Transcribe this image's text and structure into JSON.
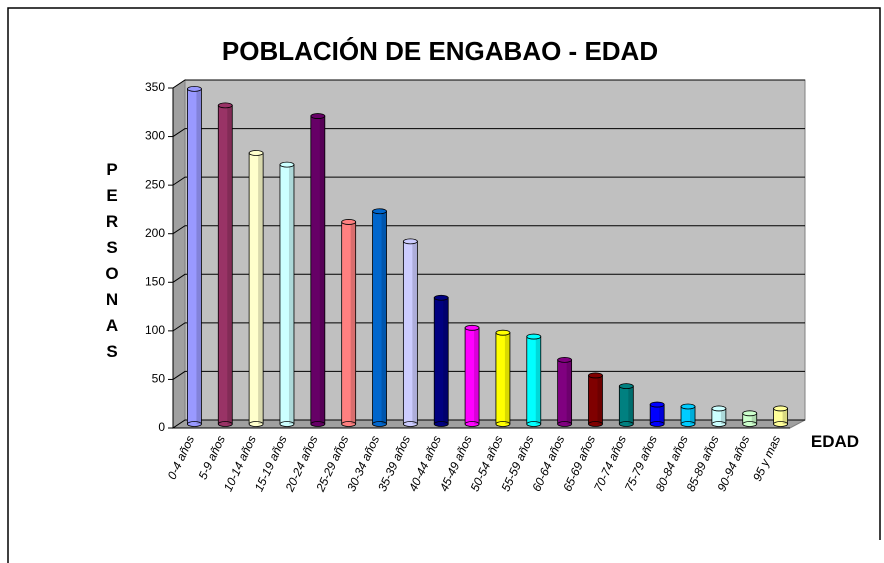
{
  "chart_data": {
    "type": "bar3d",
    "title": "POBLACIÓN DE ENGABAO - EDAD",
    "x_label": "EDAD",
    "y_label": "PERSONAS",
    "categories": [
      "0-4 años",
      "5-9 años",
      "10-14 años",
      "15-19 años",
      "20-24 años",
      "25-29 años",
      "30-34 años",
      "35-39 años",
      "40-44 años",
      "45-49 años",
      "50-54 años",
      "55-59 años",
      "60-64 años",
      "65-69 años",
      "70-74 años",
      "75-79 años",
      "80-84 años",
      "85-89 años",
      "90-94 años",
      "95 y mas"
    ],
    "values": [
      345,
      328,
      279,
      267,
      317,
      208,
      219,
      188,
      130,
      99,
      94,
      90,
      66,
      50,
      39,
      20,
      18,
      16,
      11,
      16
    ],
    "colors": [
      "#9999ff",
      "#993366",
      "#ffffcc",
      "#ccffff",
      "#660066",
      "#ff8080",
      "#0066cc",
      "#ccccff",
      "#000080",
      "#ff00ff",
      "#ffff00",
      "#00ffff",
      "#800080",
      "#800000",
      "#008080",
      "#0000ff",
      "#00ccff",
      "#ccffff",
      "#ccffcc",
      "#ffff99"
    ],
    "ylim": [
      0,
      350
    ],
    "yticks": [
      0,
      50,
      100,
      150,
      200,
      250,
      300,
      350
    ],
    "grid": true
  }
}
